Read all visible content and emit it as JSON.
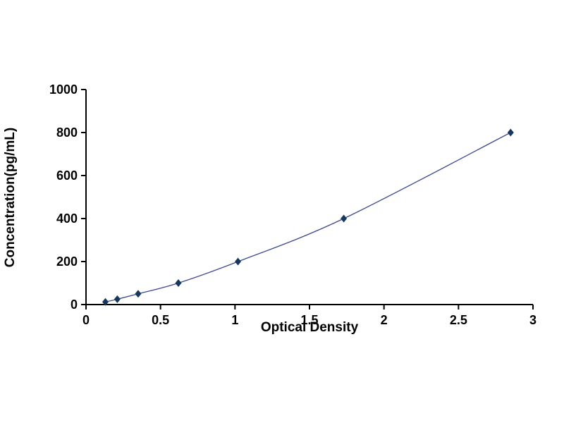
{
  "chart_data": {
    "type": "line",
    "title": "",
    "xlabel": "Optical Density",
    "ylabel": "Concentration(pg/mL)",
    "x": [
      0.13,
      0.21,
      0.35,
      0.62,
      1.02,
      1.73,
      2.85
    ],
    "y": [
      12.5,
      25,
      50,
      100,
      200,
      400,
      800
    ],
    "xlim": [
      0,
      3
    ],
    "ylim": [
      0,
      1000
    ],
    "x_ticks": [
      {
        "v": 0,
        "label": "0"
      },
      {
        "v": 0.5,
        "label": "0.5"
      },
      {
        "v": 1,
        "label": "1"
      },
      {
        "v": 1.5,
        "label": "1.5"
      },
      {
        "v": 2,
        "label": "2"
      },
      {
        "v": 2.5,
        "label": "2.5"
      },
      {
        "v": 3,
        "label": "3"
      }
    ],
    "y_ticks": [
      {
        "v": 0,
        "label": "0"
      },
      {
        "v": 200,
        "label": "200"
      },
      {
        "v": 400,
        "label": "400"
      },
      {
        "v": 600,
        "label": "600"
      },
      {
        "v": 800,
        "label": "800"
      },
      {
        "v": 1000,
        "label": "1000"
      }
    ],
    "grid": false,
    "legend": "none",
    "marker_shape": "diamond",
    "marker_color": "#17375E",
    "line_color": "#3B4A8F",
    "background_color": "#ffffff"
  }
}
